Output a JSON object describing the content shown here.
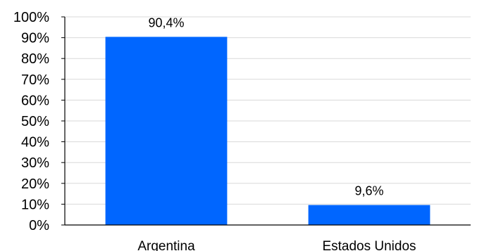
{
  "chart_data": {
    "type": "bar",
    "title": "",
    "xlabel": "",
    "ylabel": "",
    "categories": [
      "Argentina",
      "Estados Unidos"
    ],
    "values": [
      90.4,
      9.6
    ],
    "data_labels": [
      "90,4%",
      "9,6%"
    ],
    "yticks": [
      "0%",
      "10%",
      "20%",
      "30%",
      "40%",
      "50%",
      "60%",
      "70%",
      "80%",
      "90%",
      "100%"
    ],
    "ylim": [
      0,
      100
    ],
    "grid": true,
    "legend": "none",
    "colors": {
      "bar": "#0066ff",
      "grid": "#d9d9d9",
      "axis": "#000000"
    }
  }
}
